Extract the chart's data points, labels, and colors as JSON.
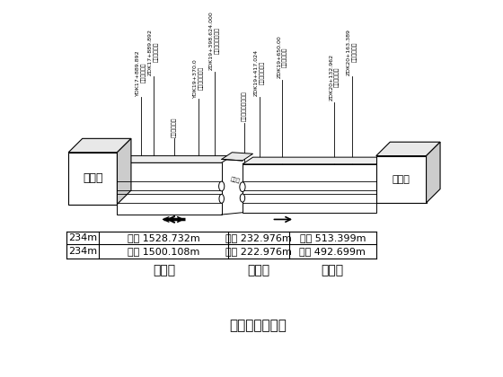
{
  "title": "标段工程范围图",
  "bg_color": "#ffffff",
  "line_color": "#000000",
  "left_station": "西平站",
  "right_station": "蛤地站",
  "table_col1_row1": "234m",
  "table_col1_row2": "234m",
  "table_col2_row1": "左线 1528.732m",
  "table_col2_row2": "右线 1500.108m",
  "table_col2_label": "盾构段",
  "table_col3_row1": "左线 232.976m",
  "table_col3_row2": "左线 222.976m",
  "table_col3_label": "矿山段",
  "table_col4_row1": "左线 513.399m",
  "table_col4_row2": "右线 492.699m",
  "table_col4_label": "盾构段",
  "ann_left_1": "YDK17+889.892\n区间终点里程",
  "ann_left_2": "ZDK17+889.892\n区间终点里程",
  "ann_ml_1": "矿山法路面画",
  "ann_ml_2": "YDK19+370.0\n牛山主起点里程",
  "ann_ml_3": "ZDK19+398.624.000\n中同矿开起点里程",
  "ann_mr_1": "中国盾构机接收前程",
  "ann_mr_2": "ZDK19+417.024\n矿山接管点里程",
  "ann_mr_3": "ZDK19+650.00\n牛山终点里程",
  "ann_right_1": "ZDK20+132.962\n区间终点里程",
  "ann_right_2": "ZDK20+163.389\n区间终点里程"
}
